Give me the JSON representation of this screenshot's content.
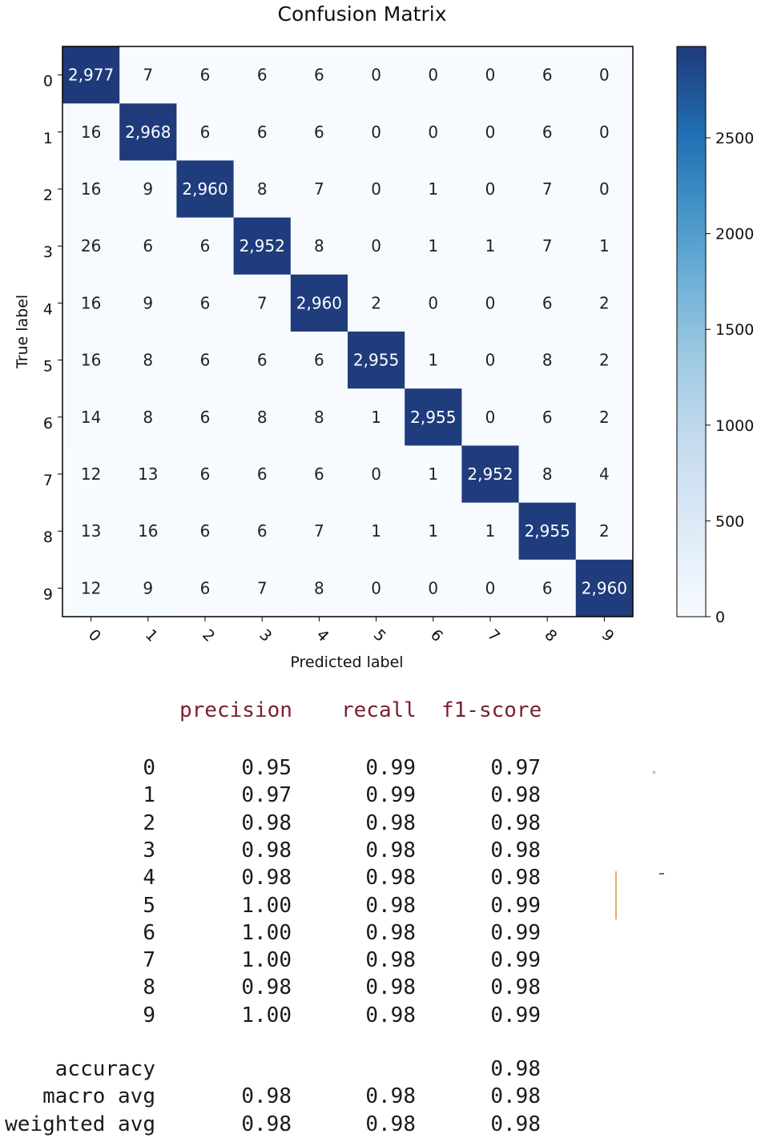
{
  "chart_data": [
    {
      "type": "heatmap",
      "title": "Confusion Matrix",
      "xlabel": "Predicted label",
      "ylabel": "True label",
      "x_ticks": [
        "0",
        "1",
        "2",
        "3",
        "4",
        "5",
        "6",
        "7",
        "8",
        "9"
      ],
      "y_ticks": [
        "0",
        "1",
        "2",
        "3",
        "4",
        "5",
        "6",
        "7",
        "8",
        "9"
      ],
      "matrix": [
        [
          2977,
          7,
          6,
          6,
          6,
          0,
          0,
          0,
          6,
          0
        ],
        [
          16,
          2968,
          6,
          6,
          6,
          0,
          0,
          0,
          6,
          0
        ],
        [
          16,
          9,
          2960,
          8,
          7,
          0,
          1,
          0,
          7,
          0
        ],
        [
          26,
          6,
          6,
          2952,
          8,
          0,
          1,
          1,
          7,
          1
        ],
        [
          16,
          9,
          6,
          7,
          2960,
          2,
          0,
          0,
          6,
          2
        ],
        [
          16,
          8,
          6,
          6,
          6,
          2955,
          1,
          0,
          8,
          2
        ],
        [
          14,
          8,
          6,
          8,
          8,
          1,
          2955,
          0,
          6,
          2
        ],
        [
          12,
          13,
          6,
          6,
          6,
          0,
          1,
          2952,
          8,
          4
        ],
        [
          13,
          16,
          6,
          6,
          7,
          1,
          1,
          1,
          2955,
          2
        ],
        [
          12,
          9,
          6,
          7,
          8,
          0,
          0,
          0,
          6,
          2960
        ]
      ],
      "colormap": "Blues",
      "colorbar": {
        "min": 0,
        "max": 2977,
        "ticks": [
          0,
          500,
          1000,
          1500,
          2000,
          2500
        ],
        "tick_labels": [
          "0",
          "500",
          "1000",
          "1500",
          "2000",
          "2500"
        ]
      }
    },
    {
      "type": "table",
      "headers": [
        "precision",
        "recall",
        "f1-score"
      ],
      "rows": [
        {
          "label": "0",
          "precision": "0.95",
          "recall": "0.99",
          "f1": "0.97"
        },
        {
          "label": "1",
          "precision": "0.97",
          "recall": "0.99",
          "f1": "0.98"
        },
        {
          "label": "2",
          "precision": "0.98",
          "recall": "0.98",
          "f1": "0.98"
        },
        {
          "label": "3",
          "precision": "0.98",
          "recall": "0.98",
          "f1": "0.98"
        },
        {
          "label": "4",
          "precision": "0.98",
          "recall": "0.98",
          "f1": "0.98"
        },
        {
          "label": "5",
          "precision": "1.00",
          "recall": "0.98",
          "f1": "0.99"
        },
        {
          "label": "6",
          "precision": "1.00",
          "recall": "0.98",
          "f1": "0.99"
        },
        {
          "label": "7",
          "precision": "1.00",
          "recall": "0.98",
          "f1": "0.99"
        },
        {
          "label": "8",
          "precision": "0.98",
          "recall": "0.98",
          "f1": "0.98"
        },
        {
          "label": "9",
          "precision": "1.00",
          "recall": "0.98",
          "f1": "0.99"
        }
      ],
      "summary": [
        {
          "label": "accuracy",
          "precision": "",
          "recall": "",
          "f1": "0.98"
        },
        {
          "label": "macro avg",
          "precision": "0.98",
          "recall": "0.98",
          "f1": "0.98"
        },
        {
          "label": "weighted avg",
          "precision": "0.98",
          "recall": "0.98",
          "f1": "0.98"
        }
      ]
    }
  ],
  "colors": {
    "low": "#f7fbff",
    "high": "#1f3a7a",
    "header_text": "#7a1f2e",
    "text_dark": "#1a1a1a"
  }
}
